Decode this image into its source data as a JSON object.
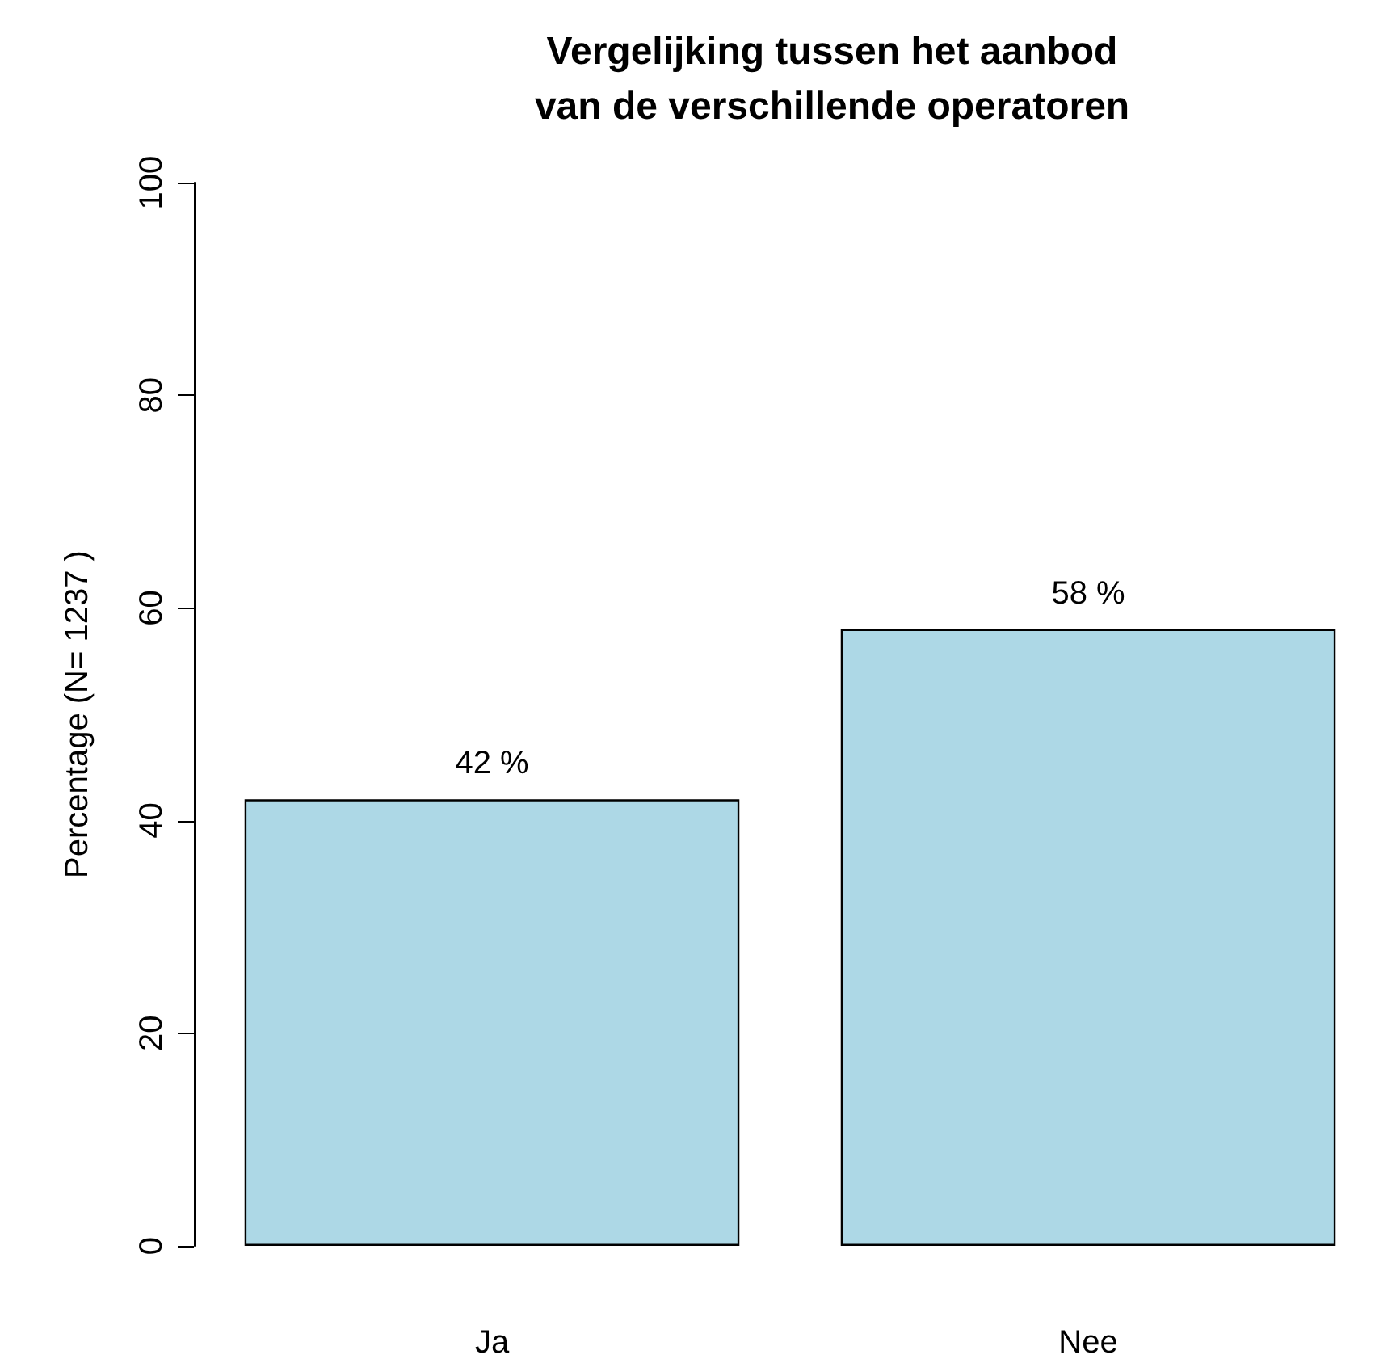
{
  "chart_data": {
    "type": "bar",
    "title": "Vergelijking tussen het aanbod\nvan de verschillende operatoren",
    "ylabel": "Percentage (N= 1237 )",
    "categories": [
      "Ja",
      "Nee"
    ],
    "values": [
      42,
      58
    ],
    "value_labels": [
      "42 %",
      "58 %"
    ],
    "color": "#add8e6",
    "ylim": [
      0,
      100
    ],
    "yticks": [
      0,
      20,
      40,
      60,
      80,
      100
    ]
  }
}
